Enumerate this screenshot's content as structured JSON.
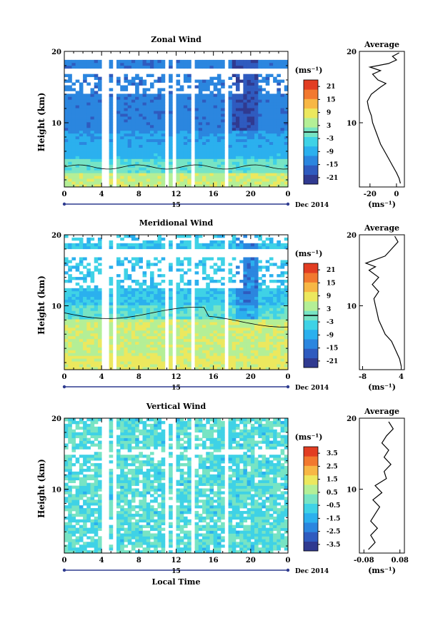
{
  "chart_data": [
    {
      "type": "heatmap",
      "title": "Zonal Wind",
      "ylabel": "Height (km)",
      "xlabel": "",
      "x_ticks": [
        "0",
        "4",
        "8",
        "12",
        "16",
        "20",
        "0"
      ],
      "x_range": [
        0,
        24
      ],
      "y_range": [
        1,
        20
      ],
      "y_ticks": [
        "10",
        "20"
      ],
      "day_label": "15",
      "date_label": "Dec 2014",
      "colorbar": {
        "unit": "(ms⁻¹)",
        "ticks": [
          "21",
          "15",
          "9",
          "3",
          "-3",
          "-9",
          "-15",
          "-21"
        ],
        "range": [
          -24,
          24
        ],
        "zero_line": 0
      },
      "profile": {
        "title": "Average",
        "xlabel": "(ms⁻¹)",
        "x_ticks": [
          "-20",
          "0"
        ],
        "x_range": [
          -28,
          6
        ],
        "y_ticks": [
          "10",
          "20"
        ],
        "points": [
          [
            3,
            1.5
          ],
          [
            2,
            2.2
          ],
          [
            0,
            3
          ],
          [
            -3,
            4
          ],
          [
            -6,
            5
          ],
          [
            -9,
            6
          ],
          [
            -12,
            7
          ],
          [
            -14,
            8
          ],
          [
            -16,
            9
          ],
          [
            -18,
            10
          ],
          [
            -19,
            11
          ],
          [
            -21,
            12
          ],
          [
            -22,
            13
          ],
          [
            -19,
            14
          ],
          [
            -12,
            15
          ],
          [
            -8,
            15.5
          ],
          [
            -14,
            16
          ],
          [
            -18,
            16.8
          ],
          [
            -12,
            17.3
          ],
          [
            -20,
            17.8
          ],
          [
            -6,
            18.3
          ],
          [
            0,
            18.8
          ],
          [
            -3,
            19.3
          ],
          [
            2,
            19.8
          ]
        ]
      }
    },
    {
      "type": "heatmap",
      "title": "Meridional Wind",
      "ylabel": "Height (km)",
      "xlabel": "",
      "x_ticks": [
        "0",
        "4",
        "8",
        "12",
        "16",
        "20",
        "0"
      ],
      "x_range": [
        0,
        24
      ],
      "y_range": [
        1,
        20
      ],
      "y_ticks": [
        "10",
        "20"
      ],
      "day_label": "15",
      "date_label": "Dec 2014",
      "colorbar": {
        "unit": "(ms⁻¹)",
        "ticks": [
          "21",
          "15",
          "9",
          "3",
          "-3",
          "-9",
          "-15",
          "-21"
        ],
        "range": [
          -24,
          24
        ],
        "zero_line": 0
      },
      "profile": {
        "title": "Average",
        "xlabel": "(ms⁻¹)",
        "x_ticks": [
          "-8",
          "4"
        ],
        "x_range": [
          -9,
          5
        ],
        "y_ticks": [
          "10",
          "20"
        ],
        "points": [
          [
            4,
            1.5
          ],
          [
            3.5,
            2.5
          ],
          [
            2.5,
            3.5
          ],
          [
            1,
            5
          ],
          [
            -1,
            6
          ],
          [
            -2,
            7
          ],
          [
            -3,
            8
          ],
          [
            -3.5,
            9
          ],
          [
            -4,
            10
          ],
          [
            -4.5,
            11
          ],
          [
            -3,
            12
          ],
          [
            -5,
            13
          ],
          [
            -3,
            14
          ],
          [
            -6,
            15
          ],
          [
            -4,
            15.5
          ],
          [
            -7,
            16
          ],
          [
            -1,
            17
          ],
          [
            1,
            18
          ],
          [
            3,
            19
          ],
          [
            2,
            19.8
          ]
        ]
      }
    },
    {
      "type": "heatmap",
      "title": "Vertical Wind",
      "ylabel": "Height (km)",
      "xlabel": "Local Time",
      "x_ticks": [
        "0",
        "4",
        "8",
        "12",
        "16",
        "20",
        "0"
      ],
      "x_range": [
        0,
        24
      ],
      "y_range": [
        1,
        20
      ],
      "y_ticks": [
        "10",
        "20"
      ],
      "day_label": "15",
      "date_label": "Dec 2014",
      "colorbar": {
        "unit": "(ms⁻¹)",
        "ticks": [
          "3.5",
          "2.5",
          "1.5",
          "0.5",
          "-0.5",
          "-1.5",
          "-2.5",
          "-3.5"
        ],
        "range": [
          -4,
          4
        ],
        "zero_line": null
      },
      "profile": {
        "title": "Average",
        "xlabel": "(ms⁻¹)",
        "x_ticks": [
          "-0.08",
          "0.08"
        ],
        "x_range": [
          -0.1,
          0.1
        ],
        "y_ticks": [
          "10",
          "20"
        ],
        "points": [
          [
            -0.06,
            1.5
          ],
          [
            -0.03,
            2.5
          ],
          [
            -0.05,
            3.5
          ],
          [
            -0.02,
            4.5
          ],
          [
            -0.05,
            5.5
          ],
          [
            -0.03,
            6.5
          ],
          [
            -0.01,
            7.5
          ],
          [
            -0.04,
            8.5
          ],
          [
            0.0,
            9.5
          ],
          [
            -0.03,
            10.5
          ],
          [
            0.02,
            11.5
          ],
          [
            0.01,
            12.5
          ],
          [
            0.04,
            13.5
          ],
          [
            0.01,
            14.5
          ],
          [
            0.03,
            15.5
          ],
          [
            0.0,
            16.5
          ],
          [
            0.02,
            17.5
          ],
          [
            0.05,
            18.5
          ],
          [
            0.03,
            19.5
          ]
        ]
      }
    }
  ],
  "colors": {
    "colormap": [
      "#303a90",
      "#2f5bbf",
      "#2b86df",
      "#2bb0ee",
      "#3fd2e6",
      "#77e4c4",
      "#b4ef96",
      "#ece85e",
      "#f7b745",
      "#f2792f",
      "#e23d22"
    ],
    "missing": "#ffffff",
    "axes": "#000000",
    "date_axis": "#2e3b8f"
  }
}
